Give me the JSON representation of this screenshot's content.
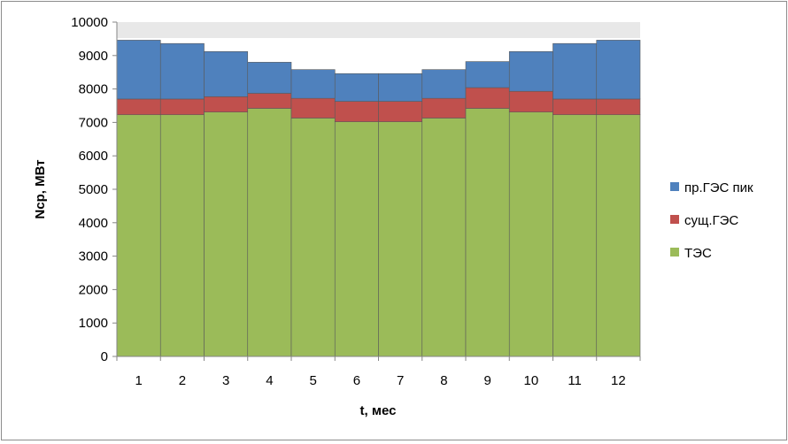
{
  "chart_data": {
    "type": "bar",
    "stacked": true,
    "xlabel": "t, мес",
    "ylabel": "Nср, МВт",
    "ylim": [
      0,
      10000
    ],
    "yticks": [
      0,
      1000,
      2000,
      3000,
      4000,
      5000,
      6000,
      7000,
      8000,
      9000,
      10000
    ],
    "categories": [
      "1",
      "2",
      "3",
      "4",
      "5",
      "6",
      "7",
      "8",
      "9",
      "10",
      "11",
      "12"
    ],
    "series": [
      {
        "name": "ТЭС",
        "color": "#9bbb59",
        "values": [
          7230,
          7230,
          7310,
          7420,
          7130,
          7020,
          7020,
          7130,
          7420,
          7310,
          7230,
          7230
        ]
      },
      {
        "name": "сущ.ГЭС",
        "color": "#c0504d",
        "values": [
          470,
          470,
          460,
          450,
          590,
          610,
          610,
          590,
          620,
          620,
          470,
          470
        ]
      },
      {
        "name": "пр.ГЭС пик",
        "color": "#4f81bd",
        "values": [
          1760,
          1660,
          1350,
          930,
          860,
          830,
          830,
          860,
          780,
          1190,
          1660,
          1760
        ]
      }
    ],
    "legend_position": "right",
    "grid": false
  }
}
